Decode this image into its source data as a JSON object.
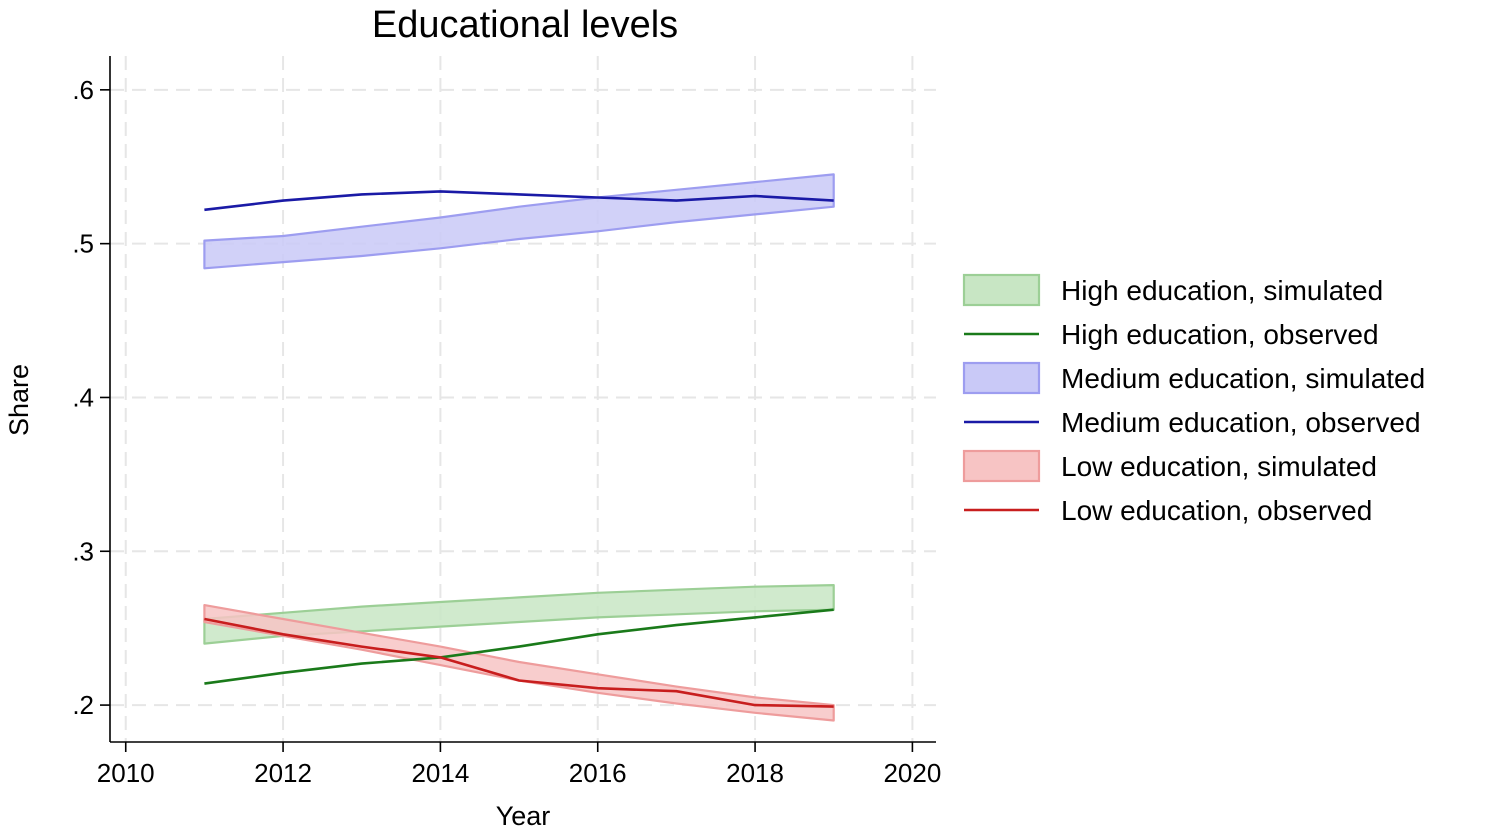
{
  "colors": {
    "high_line": "#1a7a1a",
    "high_band_fill": "#c8e6c4",
    "high_band_edge": "#9ccf96",
    "medium_line": "#1a1aa6",
    "medium_band_fill": "#c9c9f7",
    "medium_band_edge": "#9d9df0",
    "low_line": "#c81e1e",
    "low_band_fill": "#f7c4c4",
    "low_band_edge": "#ee9c9c"
  },
  "chart_data": {
    "type": "area",
    "title": "Educational levels",
    "xlabel": "Year",
    "ylabel": "Share",
    "xlim": [
      2009.8,
      2020.3
    ],
    "ylim": [
      0.176,
      0.622
    ],
    "x_ticks": [
      2010,
      2012,
      2014,
      2016,
      2018,
      2020
    ],
    "x_tick_labels": [
      "2010",
      "2012",
      "2014",
      "2016",
      "2018",
      "2020"
    ],
    "y_ticks": [
      0.2,
      0.3,
      0.4,
      0.5,
      0.6
    ],
    "y_tick_labels": [
      ".2",
      ".3",
      ".4",
      ".5",
      ".6"
    ],
    "grid": true,
    "legend_position": "right",
    "x": [
      2011,
      2012,
      2013,
      2014,
      2015,
      2016,
      2017,
      2018,
      2019
    ],
    "series": [
      {
        "name": "High education, simulated",
        "kind": "band",
        "color_key": "high",
        "lower": [
          0.24,
          0.245,
          0.248,
          0.251,
          0.254,
          0.257,
          0.259,
          0.261,
          0.262
        ],
        "upper": [
          0.256,
          0.26,
          0.264,
          0.267,
          0.27,
          0.273,
          0.275,
          0.277,
          0.278
        ]
      },
      {
        "name": "High education, observed",
        "kind": "line",
        "color_key": "high",
        "values": [
          0.214,
          0.221,
          0.227,
          0.231,
          0.238,
          0.246,
          0.252,
          0.257,
          0.262
        ]
      },
      {
        "name": "Medium education, simulated",
        "kind": "band",
        "color_key": "medium",
        "lower": [
          0.484,
          0.488,
          0.492,
          0.497,
          0.503,
          0.508,
          0.514,
          0.519,
          0.524
        ],
        "upper": [
          0.502,
          0.505,
          0.511,
          0.517,
          0.524,
          0.53,
          0.535,
          0.54,
          0.545
        ]
      },
      {
        "name": "Medium education, observed",
        "kind": "line",
        "color_key": "medium",
        "values": [
          0.522,
          0.528,
          0.532,
          0.534,
          0.532,
          0.53,
          0.528,
          0.531,
          0.528
        ]
      },
      {
        "name": "Low education, simulated",
        "kind": "band",
        "color_key": "low",
        "lower": [
          0.254,
          0.245,
          0.236,
          0.226,
          0.216,
          0.208,
          0.201,
          0.195,
          0.19
        ],
        "upper": [
          0.265,
          0.256,
          0.247,
          0.238,
          0.228,
          0.22,
          0.212,
          0.205,
          0.2
        ]
      },
      {
        "name": "Low education, observed",
        "kind": "line",
        "color_key": "low",
        "values": [
          0.256,
          0.246,
          0.238,
          0.231,
          0.216,
          0.211,
          0.209,
          0.2,
          0.199
        ]
      }
    ]
  }
}
